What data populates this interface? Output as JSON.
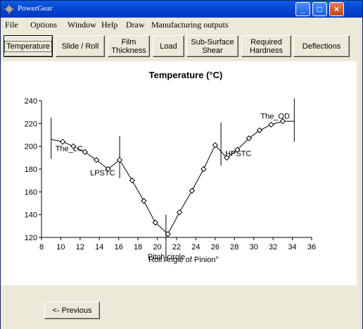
{
  "window": {
    "title": "PowerGear",
    "min_glyph": "_",
    "max_glyph": "□",
    "close_glyph": "×"
  },
  "menu": [
    "File",
    "Options",
    "Window",
    "Help",
    "Draw",
    "Manufacturing outputs"
  ],
  "tabs": [
    {
      "label": "Temperature",
      "active": true
    },
    {
      "label": "Slide / Roll",
      "active": false
    },
    {
      "label": "Film Thickness",
      "active": false
    },
    {
      "label": "Load",
      "active": false
    },
    {
      "label": "Sub-Surface Shear",
      "active": false
    },
    {
      "label": "Required Hardness",
      "active": false
    },
    {
      "label": "Deflections",
      "active": false
    }
  ],
  "nav": {
    "previous_label": "<- Previous"
  },
  "chart_data": {
    "type": "line",
    "title": "Temperature (°C)",
    "xlabel": "Roll Angle of Pinion°",
    "ylabel": "",
    "xlim": [
      8,
      36
    ],
    "ylim": [
      120,
      240
    ],
    "xticks": [
      8,
      10,
      12,
      14,
      16,
      18,
      20,
      22,
      24,
      26,
      28,
      30,
      32,
      34,
      36
    ],
    "yticks": [
      120,
      140,
      160,
      180,
      200,
      220,
      240
    ],
    "grid": false,
    "series": [
      {
        "x": [
          9.0,
          10.2,
          11.3,
          12.5,
          13.7,
          14.9,
          16.1,
          17.4,
          18.6,
          19.8,
          21.1,
          22.3,
          23.6,
          24.8,
          26.0,
          27.2,
          28.3,
          29.5,
          30.6,
          31.8,
          33.0,
          34.2
        ],
        "y": [
          206,
          204,
          200,
          195,
          188,
          180,
          188,
          170,
          152,
          133,
          123,
          142,
          161,
          180,
          201,
          190,
          197,
          207,
          214,
          219,
          222,
          222
        ],
        "markers": [
          false,
          true,
          true,
          true,
          true,
          true,
          true,
          true,
          true,
          true,
          true,
          true,
          true,
          true,
          true,
          true,
          true,
          true,
          true,
          true,
          true,
          false
        ]
      }
    ],
    "annotations": [
      {
        "label": "The_LC",
        "x": 9.0,
        "line_from": 189,
        "line_to": 225
      },
      {
        "label": "LPSTC",
        "x": 16.1,
        "line_from": 172,
        "line_to": 209
      },
      {
        "label": "Pitch circle",
        "x": 20.9,
        "line_from": 103,
        "line_to": 140
      },
      {
        "label": "HPSTC",
        "x": 26.6,
        "line_from": 183,
        "line_to": 221
      },
      {
        "label": "The_OD",
        "x": 34.2,
        "line_from": 204,
        "line_to": 242
      }
    ]
  }
}
